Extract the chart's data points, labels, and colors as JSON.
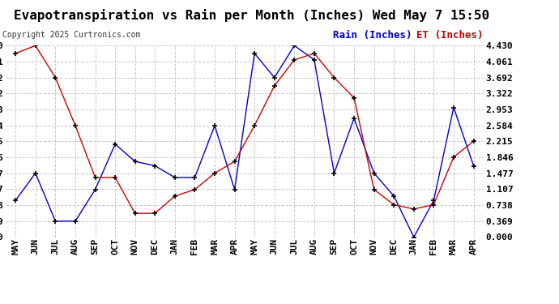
{
  "title": "Evapotranspiration vs Rain per Month (Inches) Wed May 7 15:50",
  "copyright": "Copyright 2025 Curtronics.com",
  "legend_rain": "Rain (Inches)",
  "legend_et": "ET (Inches)",
  "months": [
    "MAY",
    "JUN",
    "JUL",
    "AUG",
    "SEP",
    "OCT",
    "NOV",
    "DEC",
    "JAN",
    "FEB",
    "MAR",
    "APR",
    "MAY",
    "JUN",
    "JUL",
    "AUG",
    "SEP",
    "OCT",
    "NOV",
    "DEC",
    "JAN",
    "FEB",
    "MAR",
    "APR"
  ],
  "rain": [
    0.85,
    1.48,
    0.37,
    0.37,
    1.1,
    2.15,
    1.75,
    1.65,
    1.38,
    1.38,
    2.58,
    1.1,
    4.25,
    3.69,
    4.43,
    4.1,
    1.48,
    2.75,
    1.48,
    0.95,
    0.0,
    0.85,
    3.0,
    1.65
  ],
  "et": [
    4.25,
    4.43,
    3.69,
    2.58,
    1.38,
    1.38,
    0.55,
    0.55,
    0.95,
    1.1,
    1.48,
    1.75,
    2.58,
    3.5,
    4.1,
    4.25,
    3.69,
    3.22,
    1.1,
    0.75,
    0.65,
    0.75,
    1.85,
    2.22
  ],
  "rain_color": "#0000cc",
  "et_color": "#cc0000",
  "marker_color": "#000000",
  "background_color": "#ffffff",
  "grid_color": "#c8c8c8",
  "title_fontsize": 11.5,
  "legend_fontsize": 9,
  "tick_fontsize": 8,
  "copyright_fontsize": 7,
  "ymin": 0.0,
  "ymax": 4.43,
  "yticks": [
    0.0,
    0.369,
    0.738,
    1.107,
    1.477,
    1.846,
    2.215,
    2.584,
    2.953,
    3.322,
    3.692,
    4.061,
    4.43
  ]
}
